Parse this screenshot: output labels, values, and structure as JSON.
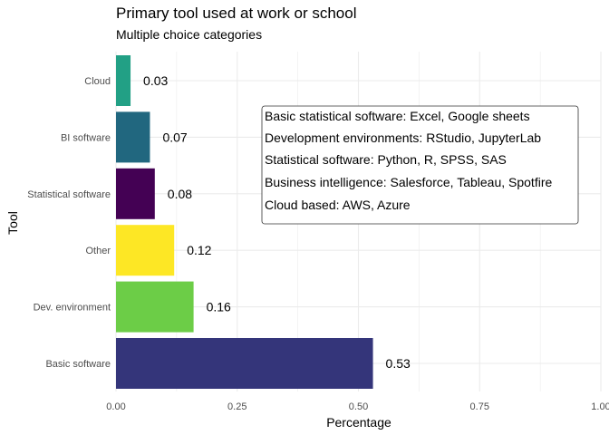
{
  "chart_data": {
    "type": "bar",
    "orientation": "horizontal",
    "title": "Primary tool used at work or school",
    "subtitle": "Multiple choice categories",
    "xlabel": "Percentage",
    "ylabel": "Tool",
    "xlim": [
      0,
      1
    ],
    "xticks": [
      "0.00",
      "0.25",
      "0.50",
      "0.75",
      "1.00"
    ],
    "xtick_values": [
      0,
      0.25,
      0.5,
      0.75,
      1.0
    ],
    "grid": true,
    "categories": [
      "Basic software",
      "Dev. environment",
      "Other",
      "Statistical software",
      "BI software",
      "Cloud"
    ],
    "values": [
      0.53,
      0.16,
      0.12,
      0.08,
      0.07,
      0.03
    ],
    "value_labels": [
      "0.53",
      "0.16",
      "0.12",
      "0.08",
      "0.07",
      "0.03"
    ],
    "colors": [
      "#34357a",
      "#6ccd47",
      "#fde725",
      "#440154",
      "#21677f",
      "#22a085"
    ],
    "annotation": {
      "lines": [
        "Basic statistical software: Excel, Google sheets",
        "Development environments: RStudio, JupyterLab",
        "Statistical software: Python, R, SPSS, SAS",
        "Business intelligence: Salesforce, Tableau, Spotfire",
        "Cloud based: AWS, Azure"
      ]
    }
  }
}
